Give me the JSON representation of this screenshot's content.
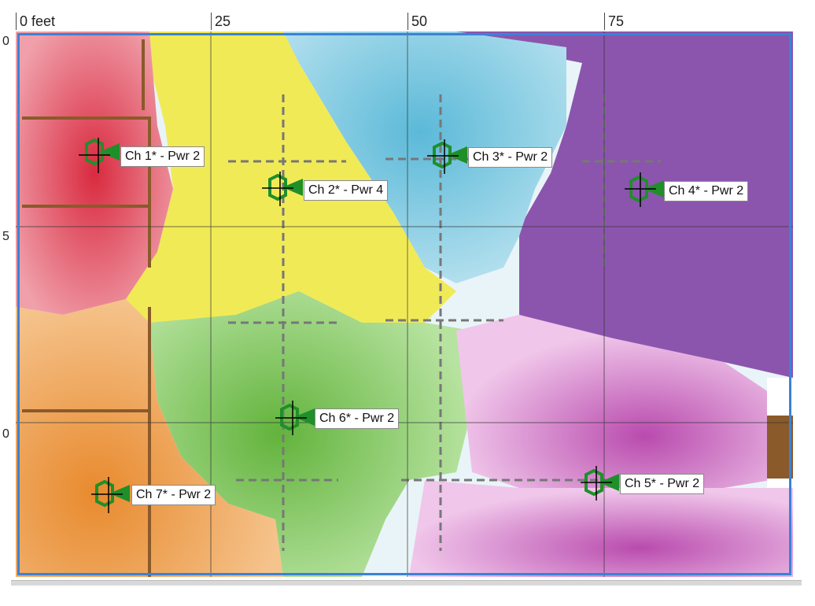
{
  "ruler": {
    "top_ticks": [
      "0 feet",
      "25",
      "50",
      "75"
    ],
    "left_ticks": [
      "0",
      "5",
      "0"
    ]
  },
  "access_points": [
    {
      "id": "ap1",
      "label": "Ch 1* - Pwr 2",
      "channel": 1,
      "power": 2
    },
    {
      "id": "ap2",
      "label": "Ch 2* - Pwr 4",
      "channel": 2,
      "power": 4
    },
    {
      "id": "ap3",
      "label": "Ch 3* - Pwr 2",
      "channel": 3,
      "power": 2
    },
    {
      "id": "ap4",
      "label": "Ch 4* - Pwr 2",
      "channel": 4,
      "power": 2
    },
    {
      "id": "ap5",
      "label": "Ch 5* - Pwr 2",
      "channel": 5,
      "power": 2
    },
    {
      "id": "ap6",
      "label": "Ch 6* - Pwr 2",
      "channel": 6,
      "power": 2
    },
    {
      "id": "ap7",
      "label": "Ch 7* - Pwr 2",
      "channel": 7,
      "power": 2
    }
  ],
  "colors": {
    "frame_border": "#3b82d6",
    "ap_marker": "#1f8f2a",
    "ch1": "#e8475a",
    "ch2": "#f0ea55",
    "ch3": "#7fc9e0",
    "ch4": "#8e5ab0",
    "ch5": "#d27fc9",
    "ch6": "#80c45a",
    "ch7": "#eb9a48"
  }
}
